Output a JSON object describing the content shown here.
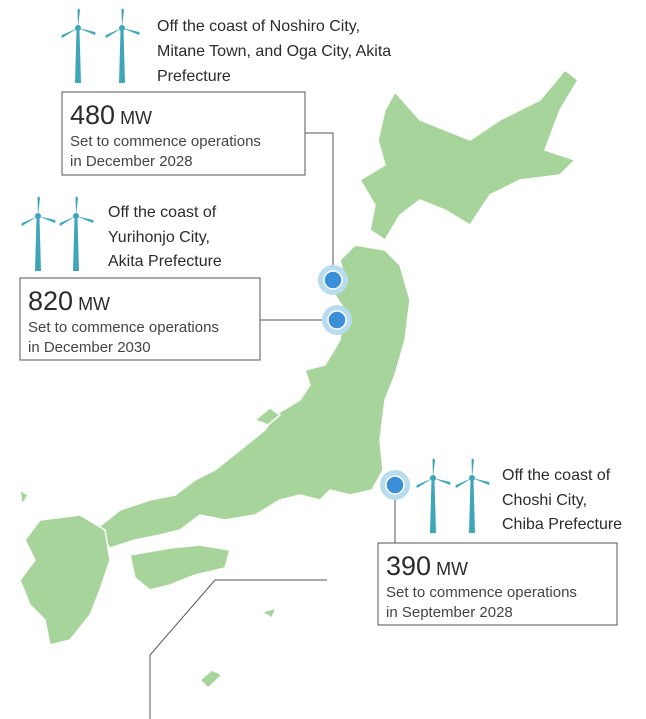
{
  "sites": [
    {
      "location": [
        "Off the coast of Noshiro City,",
        "Mitane Town, and Oga City, Akita",
        "Prefecture"
      ],
      "capacity": 480,
      "unit": "MW",
      "status": [
        "Set to commence operations",
        "in December 2028"
      ]
    },
    {
      "location": [
        "Off the coast of",
        "Yurihonjo City,",
        "Akita Prefecture"
      ],
      "capacity": 820,
      "unit": "MW",
      "status": [
        "Set to commence operations",
        "in December 2030"
      ]
    },
    {
      "location": [
        "Off the coast of",
        "Choshi City,",
        "Chiba Prefecture"
      ],
      "capacity": 390,
      "unit": "MW",
      "status": [
        "Set to commence operations",
        "in September 2028"
      ]
    }
  ]
}
